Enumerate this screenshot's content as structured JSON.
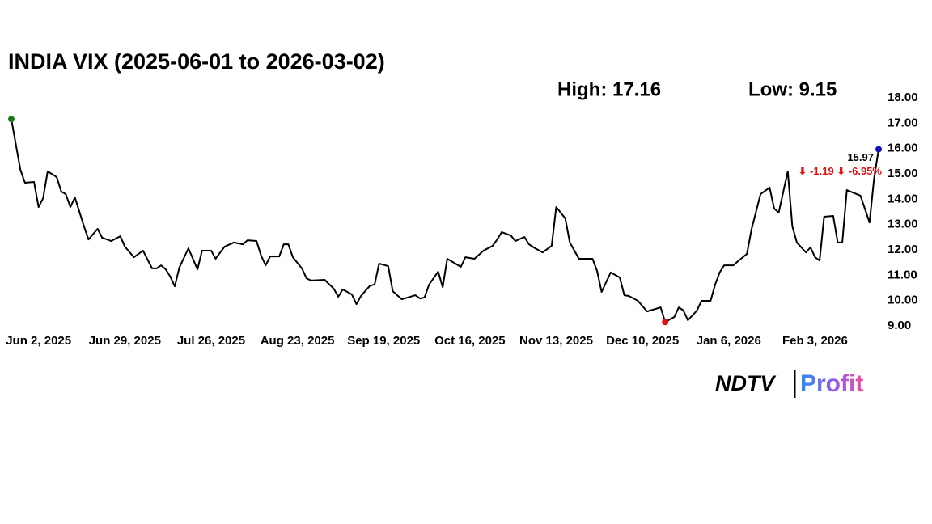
{
  "chart_data": {
    "type": "line",
    "title": "INDIA VIX (2025-06-01 to 2026-03-02)",
    "annotations": {
      "high": "High: 17.16",
      "low": "Low: 9.15",
      "change": "⬇ -1.19 ⬇ -6.95%"
    },
    "series": [
      {
        "name": "INDIA VIX",
        "color": "#000000",
        "x": [
          0,
          2,
          3,
          5,
          6,
          7,
          8,
          10,
          11,
          12,
          13,
          14,
          16,
          17,
          19,
          20,
          22,
          24,
          25,
          27,
          28,
          29,
          31,
          32,
          33,
          34,
          35,
          36,
          37,
          39,
          41,
          42,
          44,
          45,
          46,
          47,
          49,
          51,
          52,
          54,
          55,
          56,
          57,
          59,
          60,
          61,
          62,
          64,
          65,
          66,
          69,
          71,
          72,
          73,
          75,
          76,
          77,
          79,
          80,
          81,
          83,
          84,
          86,
          89,
          90,
          91,
          92,
          94,
          95,
          96,
          99,
          100,
          102,
          104,
          106,
          107,
          108,
          110,
          111,
          113,
          114,
          115,
          117,
          119,
          120,
          122,
          123,
          125,
          128,
          129,
          130,
          132,
          134,
          135,
          136,
          138,
          140,
          143,
          144,
          146,
          147,
          148,
          149,
          151,
          152,
          154,
          155,
          156,
          157,
          159,
          160,
          162,
          163,
          164,
          165,
          167,
          168,
          169,
          171,
          172,
          173,
          175,
          176,
          177,
          178,
          179,
          181,
          182,
          183,
          184,
          187,
          189,
          190,
          191
        ],
        "values": [
          17.16,
          15.16,
          14.65,
          14.68,
          13.69,
          14.04,
          15.1,
          14.87,
          14.3,
          14.2,
          13.69,
          14.07,
          12.93,
          12.41,
          12.83,
          12.48,
          12.35,
          12.54,
          12.13,
          11.71,
          11.84,
          11.97,
          11.27,
          11.27,
          11.39,
          11.23,
          10.95,
          10.56,
          11.3,
          12.06,
          11.23,
          11.97,
          11.97,
          11.65,
          11.9,
          12.13,
          12.29,
          12.22,
          12.38,
          12.35,
          11.78,
          11.39,
          11.74,
          11.74,
          12.22,
          12.22,
          11.71,
          11.27,
          10.88,
          10.79,
          10.82,
          10.47,
          10.15,
          10.44,
          10.24,
          9.86,
          10.18,
          10.59,
          10.63,
          11.46,
          11.36,
          10.37,
          10.05,
          10.21,
          10.08,
          10.12,
          10.63,
          11.14,
          10.53,
          11.65,
          11.33,
          11.71,
          11.65,
          11.97,
          12.16,
          12.41,
          12.7,
          12.57,
          12.35,
          12.51,
          12.22,
          12.1,
          11.9,
          12.16,
          13.69,
          13.24,
          12.29,
          11.65,
          11.65,
          11.17,
          10.34,
          11.11,
          10.91,
          10.21,
          10.18,
          9.99,
          9.57,
          9.73,
          9.15,
          9.35,
          9.73,
          9.61,
          9.22,
          9.61,
          9.99,
          9.99,
          10.63,
          11.11,
          11.39,
          11.39,
          11.55,
          11.84,
          12.8,
          13.5,
          14.2,
          14.46,
          13.63,
          13.47,
          15.1,
          12.93,
          12.29,
          11.9,
          12.1,
          11.71,
          11.58,
          13.31,
          13.34,
          12.29,
          12.29,
          14.36,
          14.14,
          13.08,
          14.81,
          15.97
        ]
      }
    ],
    "markers": {
      "start": "#1a7a1a",
      "low": "#e01010",
      "end": "#1010c0"
    },
    "change_color": "#e01010",
    "xlim": [
      0,
      191
    ],
    "xticks": [
      {
        "value": 6,
        "label": "Jun 2, 2025"
      },
      {
        "value": 25,
        "label": "Jun 29, 2025"
      },
      {
        "value": 44,
        "label": "Jul 26, 2025"
      },
      {
        "value": 63,
        "label": "Aug 23, 2025"
      },
      {
        "value": 82,
        "label": "Sep 19, 2025"
      },
      {
        "value": 101,
        "label": "Oct 16, 2025"
      },
      {
        "value": 120,
        "label": "Nov 13, 2025"
      },
      {
        "value": 139,
        "label": "Dec 10, 2025"
      },
      {
        "value": 158,
        "label": "Jan 6, 2026"
      },
      {
        "value": 177,
        "label": "Feb 3, 2026"
      }
    ],
    "ylim": [
      9,
      18
    ],
    "yticks": [
      {
        "value": 9,
        "label": "9.00"
      },
      {
        "value": 10,
        "label": "10.00"
      },
      {
        "value": 11,
        "label": "11.00"
      },
      {
        "value": 12,
        "label": "12.00"
      },
      {
        "value": 13,
        "label": "13.00"
      },
      {
        "value": 14,
        "label": "14.00"
      },
      {
        "value": 15,
        "label": "15.00"
      },
      {
        "value": 16,
        "label": "16.00"
      },
      {
        "value": 17,
        "label": "17.00"
      },
      {
        "value": 18,
        "label": "18.00"
      }
    ],
    "grid": false
  },
  "logo": {
    "left": "NDTV",
    "right": "Profit"
  }
}
